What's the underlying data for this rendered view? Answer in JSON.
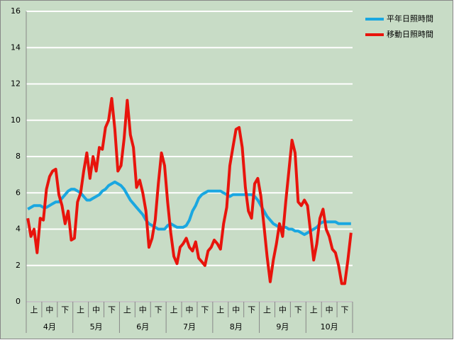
{
  "chart_data": {
    "type": "line",
    "categories": [
      null,
      null,
      "上",
      null,
      null,
      null,
      null,
      "中",
      null,
      null,
      null,
      null,
      "下",
      null,
      null,
      null,
      null,
      "上",
      null,
      null,
      null,
      null,
      "中",
      null,
      null,
      null,
      null,
      "下",
      null,
      null,
      null,
      null,
      "上",
      null,
      null,
      null,
      null,
      "中",
      null,
      null,
      null,
      null,
      "下",
      null,
      null,
      null,
      null,
      "上",
      null,
      null,
      null,
      null,
      "中",
      null,
      null,
      null,
      null,
      "下",
      null,
      null,
      null,
      null,
      "上",
      null,
      null,
      null,
      null,
      "中",
      null,
      null,
      null,
      null,
      "下",
      null,
      null,
      null,
      null,
      "上",
      null,
      null,
      null,
      null,
      "中",
      null,
      null,
      null,
      null,
      "下",
      null,
      null,
      null,
      null,
      "上",
      null,
      null,
      null,
      null,
      "中",
      null,
      null,
      null,
      null,
      "下",
      null,
      null
    ],
    "months": [
      "4月",
      "5月",
      "6月",
      "7月",
      "8月",
      "9月",
      "10月"
    ],
    "series": [
      {
        "name": "平年日照時間",
        "color": "#1aa7e0",
        "values": [
          5.1,
          5.2,
          5.3,
          5.3,
          5.3,
          5.2,
          5.2,
          5.3,
          5.4,
          5.5,
          5.5,
          5.7,
          5.9,
          6.1,
          6.2,
          6.2,
          6.1,
          6.0,
          5.8,
          5.6,
          5.6,
          5.7,
          5.8,
          5.9,
          6.1,
          6.2,
          6.4,
          6.5,
          6.6,
          6.5,
          6.4,
          6.2,
          5.9,
          5.6,
          5.4,
          5.2,
          5.0,
          4.8,
          4.5,
          4.3,
          4.2,
          4.1,
          4.0,
          4.0,
          4.0,
          4.2,
          4.3,
          4.2,
          4.1,
          4.1,
          4.1,
          4.2,
          4.5,
          5.0,
          5.3,
          5.7,
          5.9,
          6.0,
          6.1,
          6.1,
          6.1,
          6.1,
          6.1,
          6.0,
          5.9,
          5.8,
          5.9,
          5.9,
          5.9,
          5.9,
          5.9,
          5.9,
          5.9,
          5.8,
          5.6,
          5.3,
          5.0,
          4.7,
          4.5,
          4.3,
          4.2,
          4.1,
          4.1,
          4.1,
          4.0,
          4.0,
          3.9,
          3.9,
          3.8,
          3.7,
          3.8,
          3.9,
          4.0,
          4.1,
          4.3,
          4.4,
          4.4,
          4.4,
          4.4,
          4.4,
          4.3,
          4.3,
          4.3,
          4.3,
          4.3
        ]
      },
      {
        "name": "移動日照時間",
        "color": "#e8140c",
        "values": [
          4.6,
          3.6,
          4.0,
          2.7,
          4.6,
          4.5,
          6.2,
          6.9,
          7.2,
          7.3,
          5.9,
          5.3,
          4.3,
          5.0,
          3.4,
          3.5,
          5.5,
          6.0,
          7.2,
          8.2,
          6.8,
          8.0,
          7.2,
          8.5,
          8.4,
          9.6,
          10.0,
          11.2,
          9.5,
          7.2,
          7.5,
          9.0,
          11.1,
          9.2,
          8.5,
          6.3,
          6.7,
          6.0,
          5.0,
          3.0,
          3.5,
          4.5,
          6.5,
          8.2,
          7.5,
          5.5,
          3.8,
          2.5,
          2.1,
          3.0,
          3.2,
          3.5,
          3.0,
          2.8,
          3.3,
          2.4,
          2.2,
          2.0,
          2.8,
          3.0,
          3.4,
          3.2,
          2.9,
          4.3,
          5.2,
          7.5,
          8.5,
          9.5,
          9.6,
          8.5,
          6.3,
          5.0,
          4.6,
          6.5,
          6.8,
          5.8,
          4.2,
          2.5,
          1.1,
          2.3,
          3.2,
          4.3,
          3.6,
          5.5,
          7.2,
          8.9,
          8.2,
          5.5,
          5.3,
          5.6,
          5.3,
          3.8,
          2.3,
          3.2,
          4.6,
          5.1,
          4.0,
          3.6,
          2.9,
          2.7,
          2.0,
          1.0,
          1.0,
          2.3,
          3.8
        ]
      }
    ],
    "ylim": [
      0,
      16
    ],
    "yticks": [
      0,
      2,
      4,
      6,
      8,
      10,
      12,
      14,
      16
    ],
    "grid": true,
    "legend": "top-right"
  }
}
